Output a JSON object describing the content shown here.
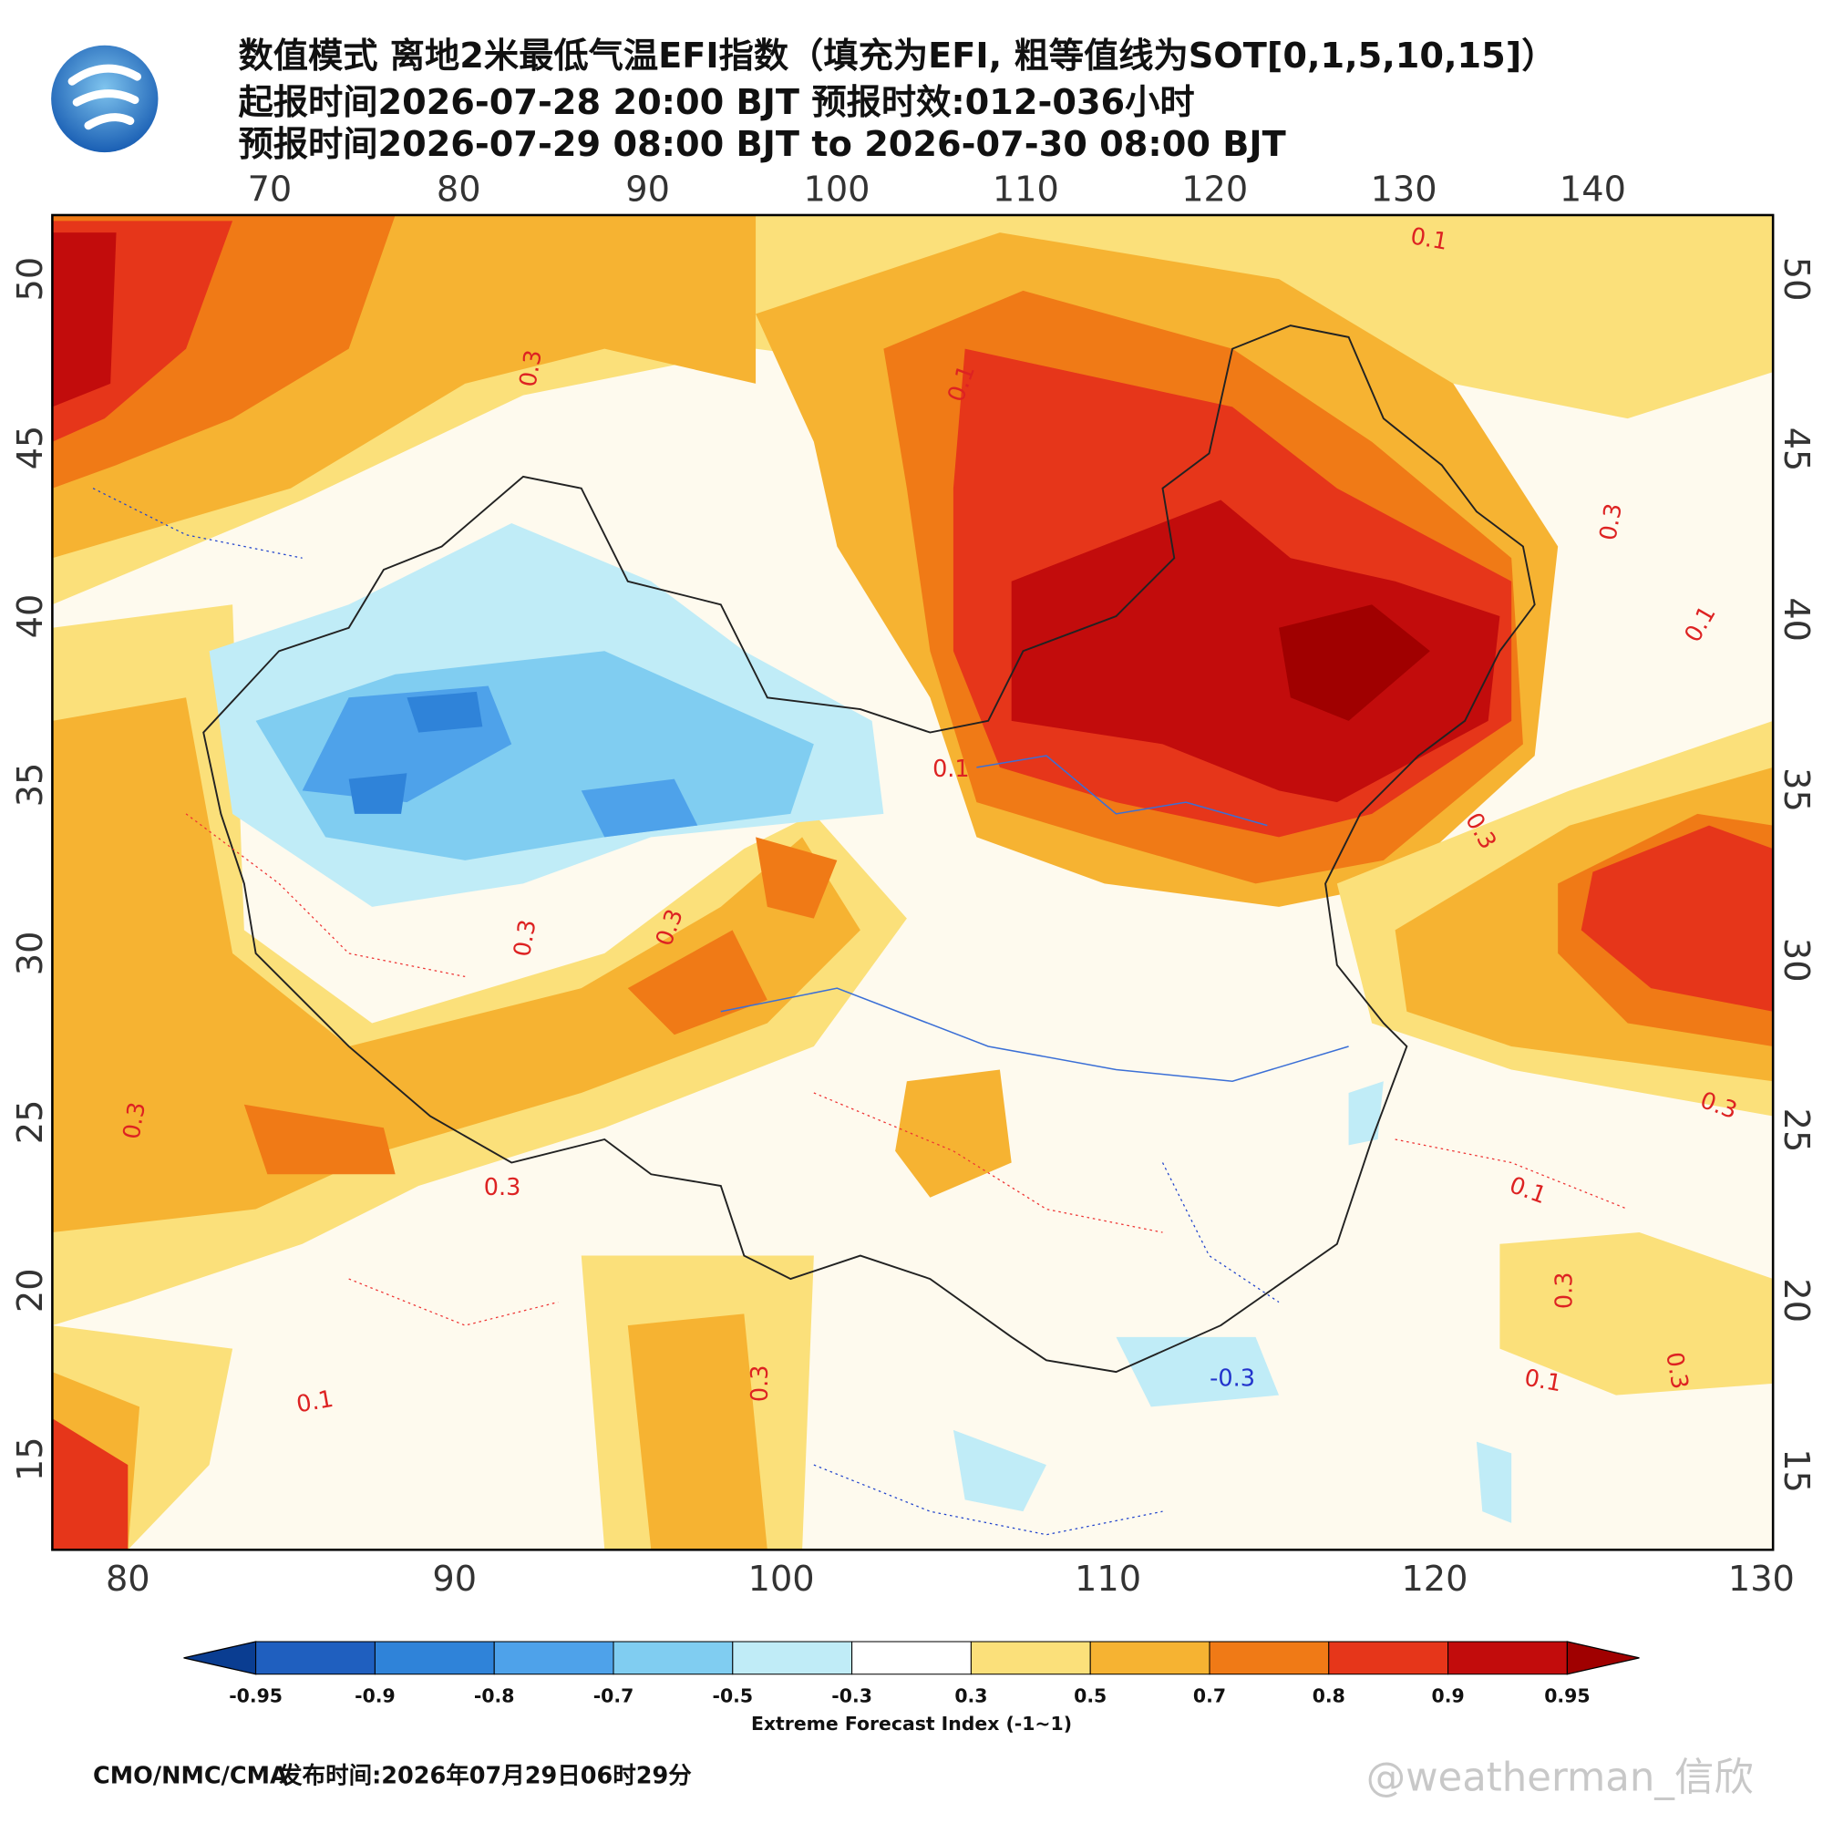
{
  "header": {
    "title_lines": [
      "数值模式 离地2米最低气温EFI指数（填充为EFI, 粗等值线为SOT[0,1,5,10,15]）",
      "起报时间2026-07-28 20:00 BJT 预报时效:012-036小时",
      "预报时间2026-07-29 08:00 BJT to 2026-07-30 08:00 BJT"
    ]
  },
  "map": {
    "top_lon_ticks": [
      70,
      80,
      90,
      100,
      110,
      120,
      130,
      140
    ],
    "bottom_lon_ticks": [
      80,
      90,
      100,
      110,
      120,
      130
    ],
    "left_lat_ticks": [
      50,
      45,
      40,
      35,
      30,
      25,
      20,
      15
    ],
    "right_lat_ticks": [
      50,
      45,
      40,
      35,
      30,
      25,
      20,
      15
    ],
    "contour_labels": [
      0.1,
      0.3,
      0.1,
      0.3,
      0.1,
      0.1,
      0.3,
      0.3,
      0.3,
      0.3,
      0.3,
      0.3,
      0.1,
      0.3,
      0.3,
      0.3,
      -0.3,
      0.1,
      0.1
    ]
  },
  "colorbar": {
    "levels": [
      -0.95,
      -0.9,
      -0.8,
      -0.7,
      -0.5,
      -0.3,
      0.3,
      0.5,
      0.7,
      0.8,
      0.9,
      0.95
    ],
    "colors": [
      "#0a3d91",
      "#1f5fbf",
      "#2f83d9",
      "#4ea2ea",
      "#80cdf1",
      "#c0ecf7",
      "#ffffff",
      "#fbe07a",
      "#f6b332",
      "#f07a16",
      "#e6361a",
      "#c20c0c",
      "#a00000"
    ],
    "label": "Extreme Forecast Index (-1~1)"
  },
  "footer": {
    "source": "CMO/NMC/CMA",
    "issue_time": "发布时间:2026年07月29日06时29分"
  },
  "watermark": "@weatherman_信欣"
}
